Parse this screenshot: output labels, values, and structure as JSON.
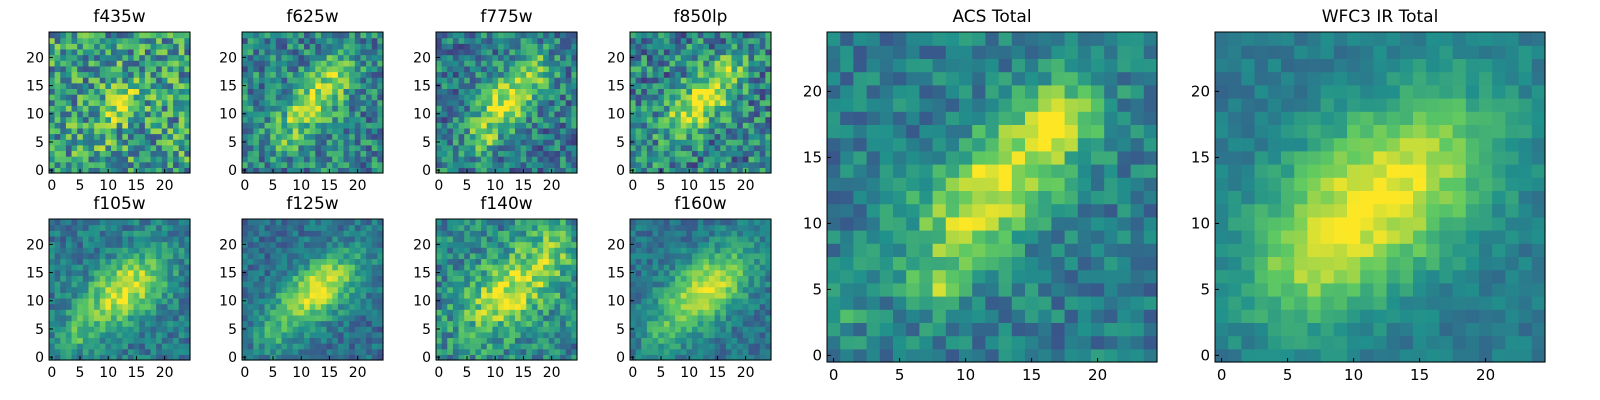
{
  "figure": {
    "colormap": "viridis",
    "colormap_stops": [
      "#440154",
      "#3b528b",
      "#21918c",
      "#5ec962",
      "#fde725"
    ]
  },
  "chart_data": [
    {
      "type": "heatmap",
      "title": "f435w",
      "grid_size": 25,
      "x_ticks": [
        0,
        5,
        10,
        15,
        20
      ],
      "y_ticks": [
        0,
        5,
        10,
        15,
        20
      ],
      "xlim": [
        -0.5,
        24.5
      ],
      "ylim": [
        -0.5,
        24.5
      ],
      "features": {
        "center": [
          12,
          12
        ],
        "amplitude": 0.35,
        "sigma_major": 3.0,
        "sigma_minor": 2.2,
        "angle_deg": 45,
        "noise": 0.45,
        "base": 0.55,
        "extra": [
          [
            8,
            5,
            0.15,
            1.5
          ]
        ]
      }
    },
    {
      "type": "heatmap",
      "title": "f625w",
      "grid_size": 25,
      "x_ticks": [
        0,
        5,
        10,
        15,
        20
      ],
      "y_ticks": [
        0,
        5,
        10,
        15,
        20
      ],
      "xlim": [
        -0.5,
        24.5
      ],
      "ylim": [
        -0.5,
        24.5
      ],
      "features": {
        "center": [
          12,
          12
        ],
        "amplitude": 0.5,
        "sigma_major": 5.0,
        "sigma_minor": 2.5,
        "angle_deg": 45,
        "noise": 0.35,
        "base": 0.45,
        "extra": [
          [
            17,
            18,
            0.2,
            2.0
          ],
          [
            7,
            5,
            0.2,
            1.5
          ]
        ]
      }
    },
    {
      "type": "heatmap",
      "title": "f775w",
      "grid_size": 25,
      "x_ticks": [
        0,
        5,
        10,
        15,
        20
      ],
      "y_ticks": [
        0,
        5,
        10,
        15,
        20
      ],
      "xlim": [
        -0.5,
        24.5
      ],
      "ylim": [
        -0.5,
        24.5
      ],
      "features": {
        "center": [
          12,
          12
        ],
        "amplitude": 0.55,
        "sigma_major": 5.5,
        "sigma_minor": 2.5,
        "angle_deg": 45,
        "noise": 0.35,
        "base": 0.42,
        "extra": [
          [
            17,
            18,
            0.25,
            2.0
          ],
          [
            8,
            5,
            0.2,
            1.5
          ]
        ]
      }
    },
    {
      "type": "heatmap",
      "title": "f850lp",
      "grid_size": 25,
      "x_ticks": [
        0,
        5,
        10,
        15,
        20
      ],
      "y_ticks": [
        0,
        5,
        10,
        15,
        20
      ],
      "xlim": [
        -0.5,
        24.5
      ],
      "ylim": [
        -0.5,
        24.5
      ],
      "features": {
        "center": [
          12,
          12
        ],
        "amplitude": 0.55,
        "sigma_major": 5.0,
        "sigma_minor": 2.5,
        "angle_deg": 45,
        "noise": 0.4,
        "base": 0.45,
        "extra": [
          [
            17,
            18,
            0.2,
            2.0
          ]
        ]
      }
    },
    {
      "type": "heatmap",
      "title": "f105w",
      "grid_size": 25,
      "x_ticks": [
        0,
        5,
        10,
        15,
        20
      ],
      "y_ticks": [
        0,
        5,
        10,
        15,
        20
      ],
      "xlim": [
        -0.5,
        24.5
      ],
      "ylim": [
        -0.5,
        24.5
      ],
      "features": {
        "center": [
          13,
          12
        ],
        "amplitude": 0.55,
        "sigma_major": 6.0,
        "sigma_minor": 3.5,
        "angle_deg": 40,
        "noise": 0.22,
        "base": 0.4,
        "extra": [
          [
            5,
            4,
            0.2,
            2.5
          ]
        ]
      }
    },
    {
      "type": "heatmap",
      "title": "f125w",
      "grid_size": 25,
      "x_ticks": [
        0,
        5,
        10,
        15,
        20
      ],
      "y_ticks": [
        0,
        5,
        10,
        15,
        20
      ],
      "xlim": [
        -0.5,
        24.5
      ],
      "ylim": [
        -0.5,
        24.5
      ],
      "features": {
        "center": [
          13,
          12
        ],
        "amplitude": 0.6,
        "sigma_major": 6.0,
        "sigma_minor": 3.2,
        "angle_deg": 40,
        "noise": 0.2,
        "base": 0.36,
        "extra": [
          [
            5,
            4,
            0.2,
            2.5
          ]
        ]
      }
    },
    {
      "type": "heatmap",
      "title": "f140w",
      "grid_size": 25,
      "x_ticks": [
        0,
        5,
        10,
        15,
        20
      ],
      "y_ticks": [
        0,
        5,
        10,
        15,
        20
      ],
      "xlim": [
        -0.5,
        24.5
      ],
      "ylim": [
        -0.5,
        24.5
      ],
      "features": {
        "center": [
          13,
          12
        ],
        "amplitude": 0.5,
        "sigma_major": 7.0,
        "sigma_minor": 4.0,
        "angle_deg": 40,
        "noise": 0.3,
        "base": 0.45,
        "extra": [
          [
            20,
            20,
            0.2,
            2.5
          ]
        ]
      }
    },
    {
      "type": "heatmap",
      "title": "f160w",
      "grid_size": 25,
      "x_ticks": [
        0,
        5,
        10,
        15,
        20
      ],
      "y_ticks": [
        0,
        5,
        10,
        15,
        20
      ],
      "xlim": [
        -0.5,
        24.5
      ],
      "ylim": [
        -0.5,
        24.5
      ],
      "features": {
        "center": [
          13,
          12
        ],
        "amplitude": 0.6,
        "sigma_major": 6.5,
        "sigma_minor": 3.5,
        "angle_deg": 40,
        "noise": 0.18,
        "base": 0.38,
        "extra": [
          [
            5,
            4,
            0.15,
            2.5
          ]
        ]
      }
    },
    {
      "type": "heatmap",
      "title": "ACS Total",
      "grid_size": 25,
      "x_ticks": [
        0,
        5,
        10,
        15,
        20
      ],
      "y_ticks": [
        0,
        5,
        10,
        15,
        20
      ],
      "xlim": [
        -0.5,
        24.5
      ],
      "ylim": [
        -0.5,
        24.5
      ],
      "features": {
        "center": [
          12,
          12.5
        ],
        "amplitude": 0.55,
        "sigma_major": 5.5,
        "sigma_minor": 2.6,
        "angle_deg": 45,
        "noise": 0.22,
        "base": 0.42,
        "extra": [
          [
            17,
            18,
            0.3,
            2.0
          ],
          [
            8,
            5,
            0.28,
            1.2
          ],
          [
            0,
            3,
            0.2,
            1.2
          ]
        ]
      }
    },
    {
      "type": "heatmap",
      "title": "WFC3 IR Total",
      "grid_size": 25,
      "x_ticks": [
        0,
        5,
        10,
        15,
        20
      ],
      "y_ticks": [
        0,
        5,
        10,
        15,
        20
      ],
      "xlim": [
        -0.5,
        24.5
      ],
      "ylim": [
        -0.5,
        24.5
      ],
      "features": {
        "center": [
          12,
          12
        ],
        "amplitude": 0.6,
        "sigma_major": 7.0,
        "sigma_minor": 4.2,
        "angle_deg": 40,
        "noise": 0.12,
        "base": 0.4,
        "extra": [
          [
            6,
            6,
            0.15,
            3.0
          ]
        ]
      }
    }
  ]
}
